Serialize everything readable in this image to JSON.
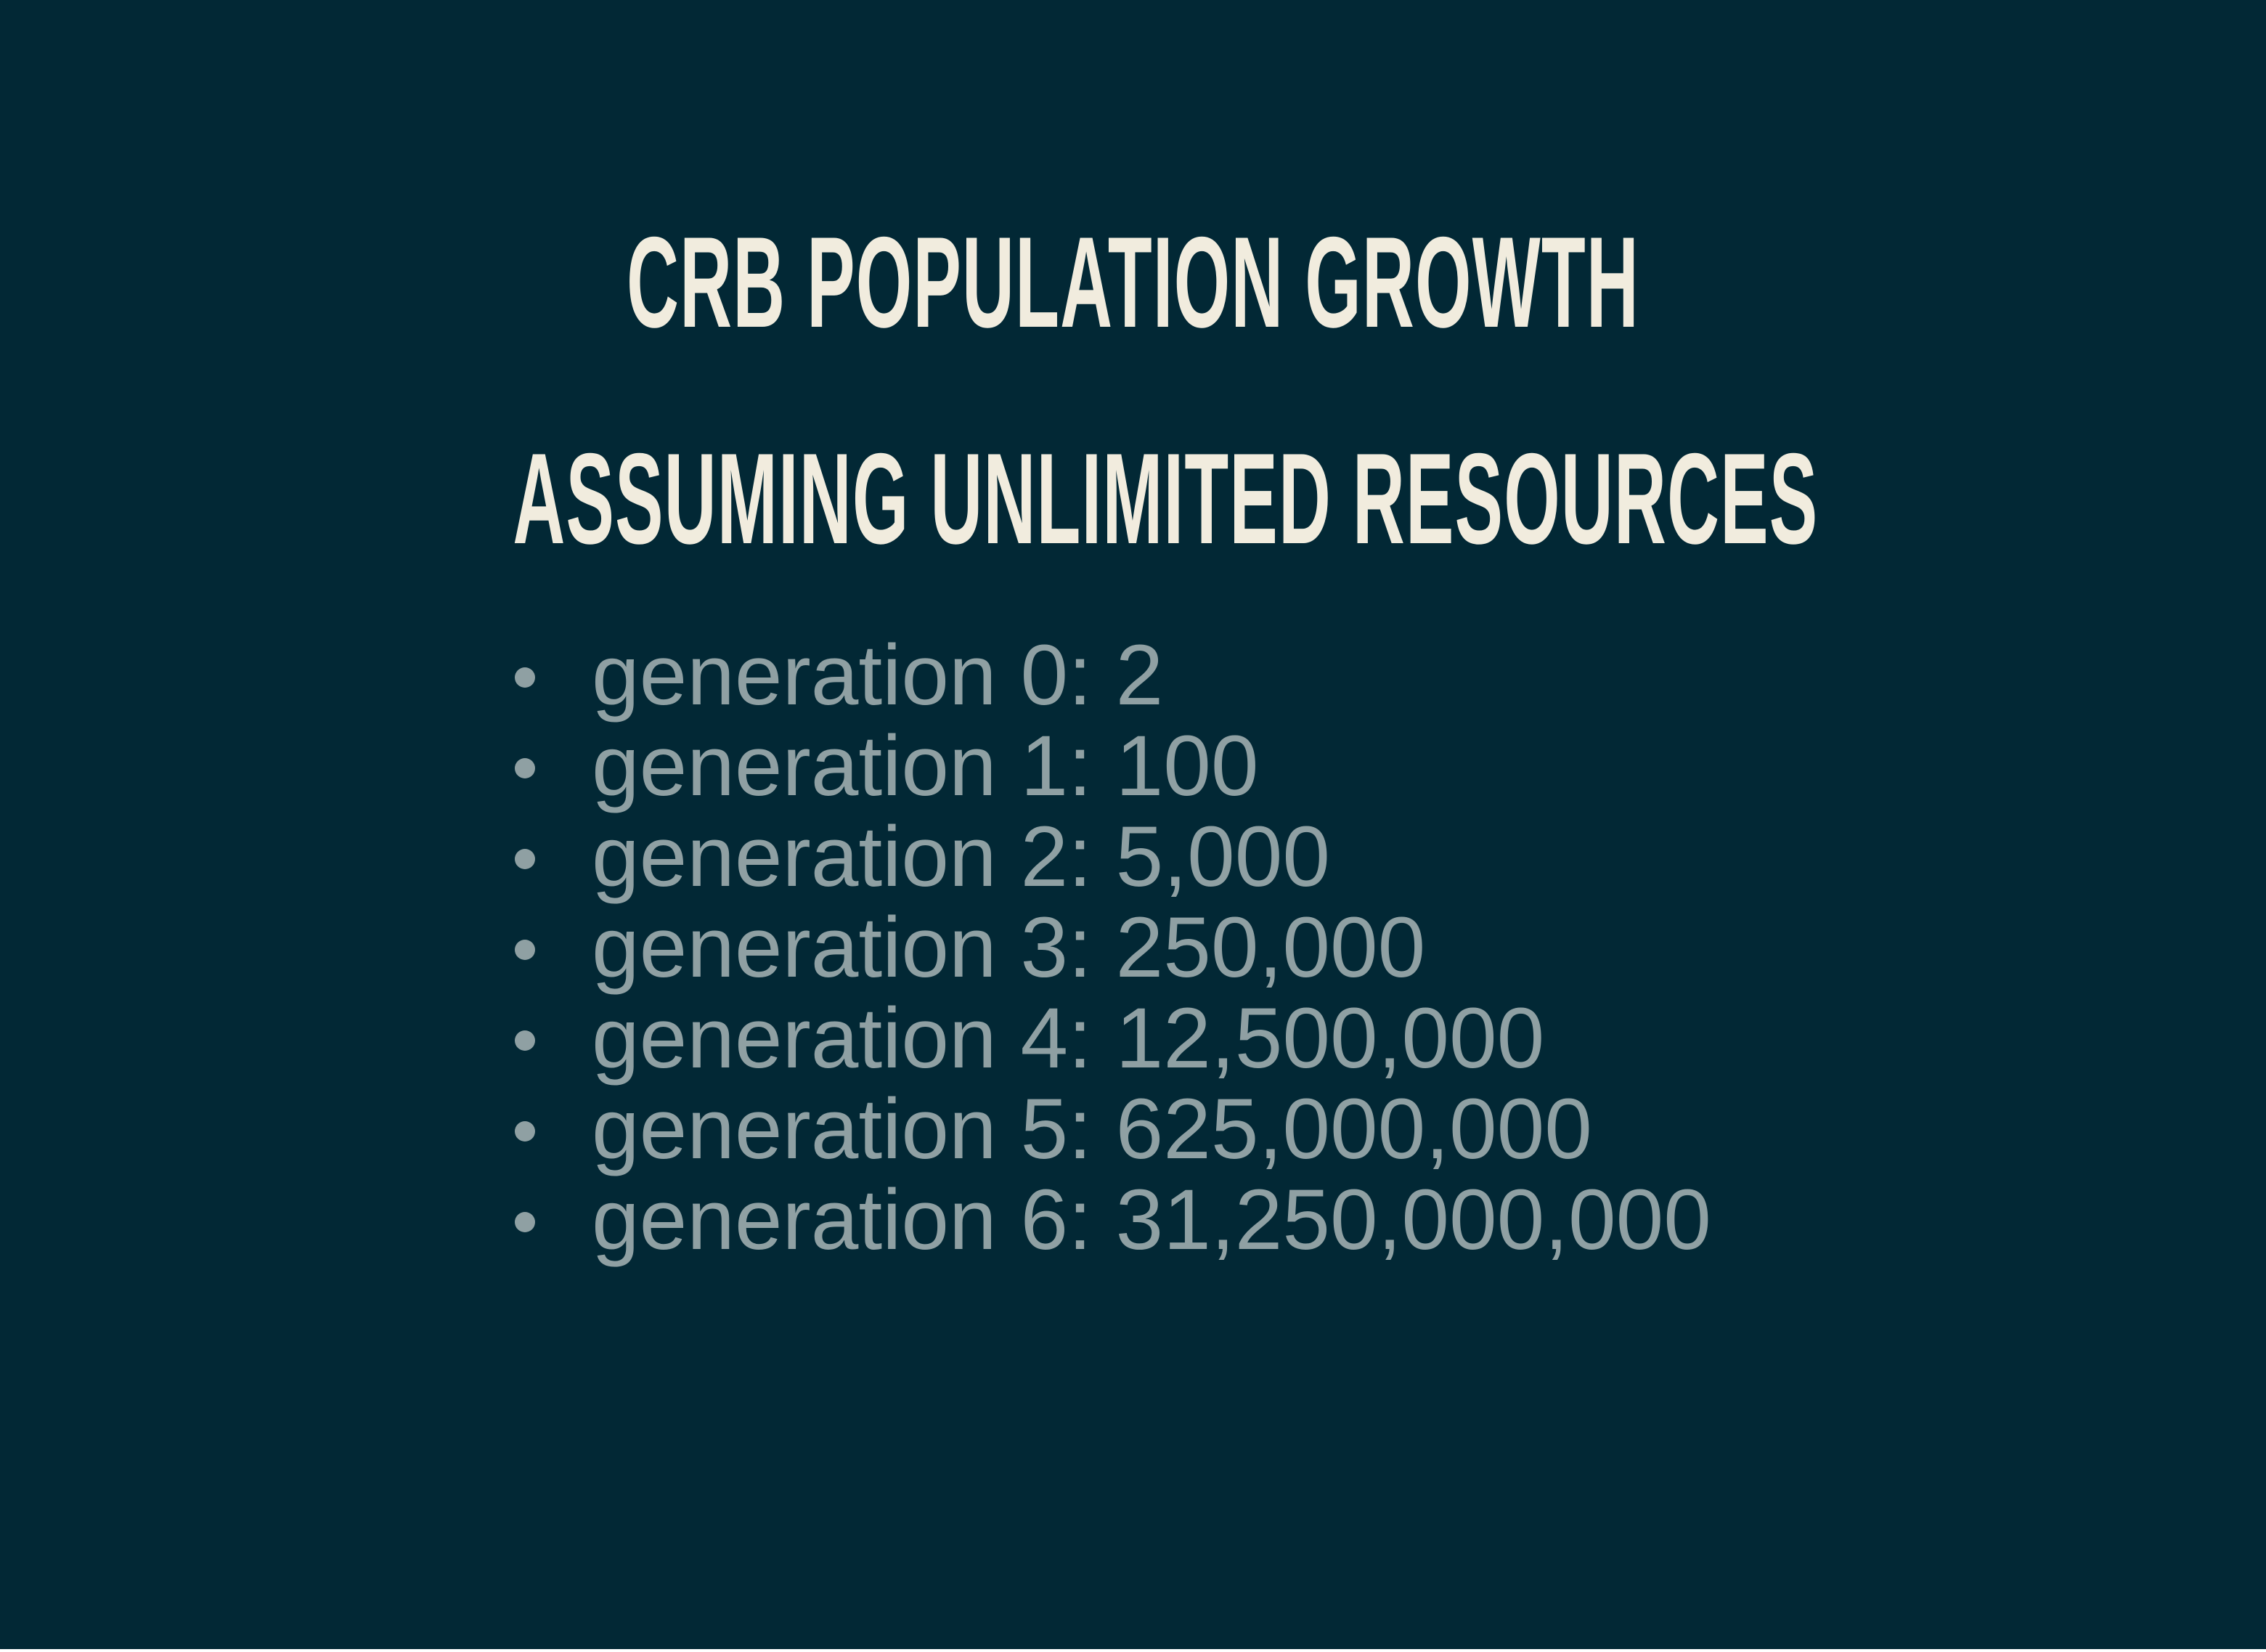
{
  "slide": {
    "title_line1": "CRB POPULATION GROWTH",
    "title_line2": "ASSUMING UNLIMITED RESOURCES",
    "items": [
      "generation 0: 2",
      "generation 1: 100",
      "generation 2: 5,000",
      "generation 3: 250,000",
      "generation 4: 12,500,000",
      "generation 5: 625,000,000",
      "generation 6: 31,250,000,000"
    ]
  },
  "colors": {
    "background": "#022835",
    "heading": "#f1ecde",
    "body_text": "#8fa0a3"
  }
}
